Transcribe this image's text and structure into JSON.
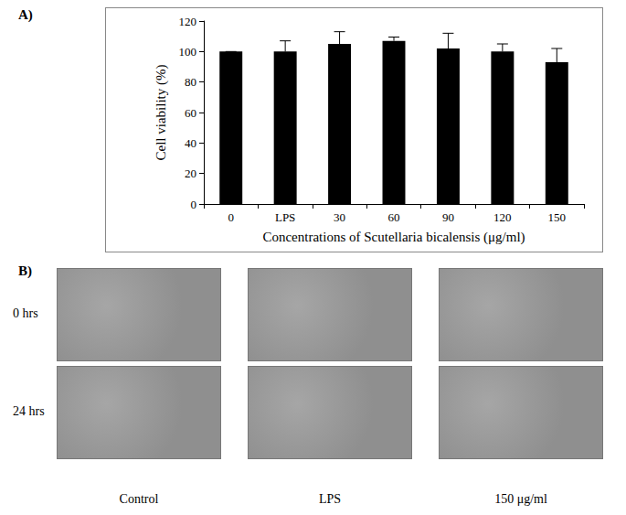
{
  "chart_data": {
    "type": "bar",
    "ylabel": "Cell viability (%)",
    "xlabel": "Concentrations of Scutellaria bicalensis (μg/ml)",
    "categories": [
      "0",
      "LPS",
      "30",
      "60",
      "90",
      "120",
      "150"
    ],
    "values": [
      100,
      100,
      105,
      107,
      102,
      100,
      93
    ],
    "errors": [
      0,
      7,
      8,
      2.5,
      10,
      5,
      9
    ],
    "color": "#000000",
    "ylim": [
      0,
      120
    ],
    "yticks": [
      0,
      20,
      40,
      60,
      80,
      100,
      120
    ],
    "grid": false
  },
  "figure": {
    "panel_labels": [
      "A)",
      "B)"
    ],
    "micrographs": {
      "rows": [
        "0 hrs",
        "24 hrs"
      ],
      "columns": [
        "Control",
        "LPS",
        "150 μg/ml"
      ]
    }
  }
}
